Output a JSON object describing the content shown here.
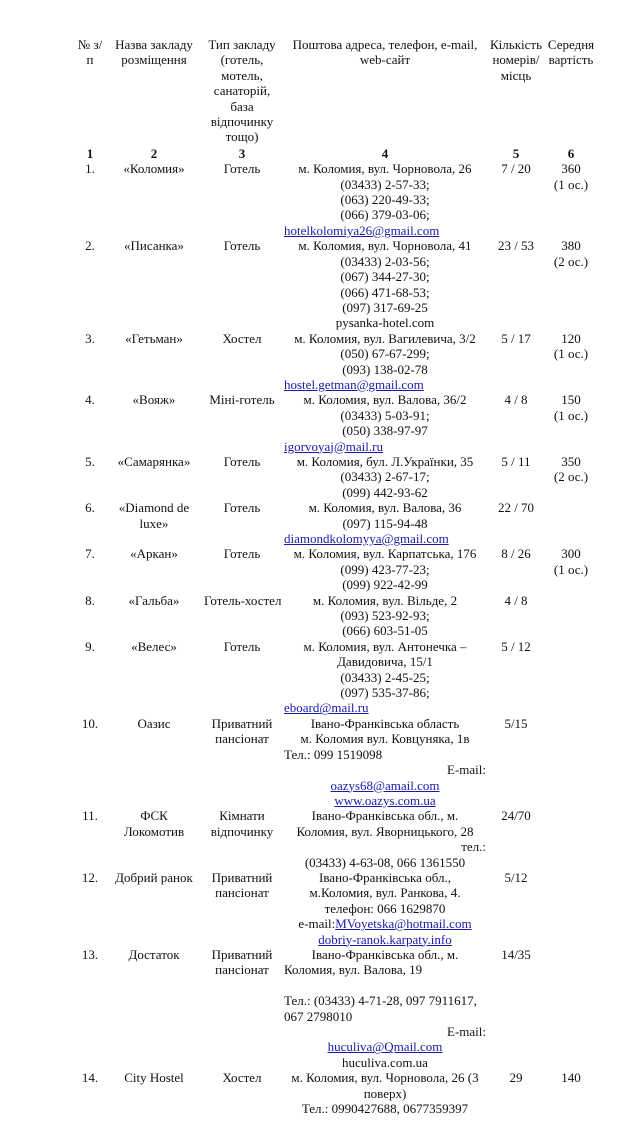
{
  "header": [
    [
      "№ з/ п"
    ],
    [
      "Назва закладу розміщення"
    ],
    [
      "Тип закладу (готель, мотель, санаторій, база відпочинку тощо)"
    ],
    [
      "Поштова адреса, телефон, e-mail, web-сайт"
    ],
    [
      "Кількість номерів/ місць"
    ],
    [
      "Середня вартість"
    ]
  ],
  "column_numbers": [
    "1",
    "2",
    "3",
    "4",
    "5",
    "6"
  ],
  "rows": [
    {
      "no": "1.",
      "name": [
        "«Коломия»"
      ],
      "type": [
        "Готель"
      ],
      "contacts": [
        {
          "t": "м. Коломия, вул. Чорновола, 26"
        },
        {
          "t": "(03433) 2-57-33;"
        },
        {
          "t": "(063) 220-49-33;"
        },
        {
          "t": "(066) 379-03-06;"
        },
        {
          "t": "hotelkolomiya26@gmail.com",
          "link": true,
          "align": "left"
        }
      ],
      "rooms": "7 / 20",
      "price": [
        "360",
        "(1 ос.)"
      ]
    },
    {
      "no": "2.",
      "name": [
        "«Писанка»"
      ],
      "type": [
        "Готель"
      ],
      "contacts": [
        {
          "t": "м. Коломия, вул. Чорновола, 41"
        },
        {
          "t": "(03433) 2-03-56;"
        },
        {
          "t": "(067) 344-27-30;"
        },
        {
          "t": "(066) 471-68-53;"
        },
        {
          "t": "(097) 317-69-25"
        },
        {
          "t": "pysanka-hotel.com"
        }
      ],
      "rooms": "23 / 53",
      "price": [
        "380",
        "(2 ос.)"
      ]
    },
    {
      "no": "3.",
      "name": [
        "«Гетьман»"
      ],
      "type": [
        "Хостел"
      ],
      "contacts": [
        {
          "t": "м. Коломия, вул. Вагилевича, 3/2"
        },
        {
          "t": "(050) 67-67-299;"
        },
        {
          "t": "(093) 138-02-78"
        },
        {
          "t": "hostel.getman@gmail.com",
          "link": true,
          "align": "left"
        }
      ],
      "rooms": "5 / 17",
      "price": [
        "120",
        "(1 ос.)"
      ]
    },
    {
      "no": "4.",
      "name": [
        "«Вояж»"
      ],
      "type": [
        "Міні-готель"
      ],
      "contacts": [
        {
          "t": "м. Коломия, вул. Валова, 36/2"
        },
        {
          "t": "(03433) 5-03-91;"
        },
        {
          "t": "(050) 338-97-97"
        },
        {
          "t": "igorvoyaj@mail.ru",
          "link": true,
          "align": "left"
        }
      ],
      "rooms": "4 / 8",
      "price": [
        "150",
        "(1 ос.)"
      ]
    },
    {
      "no": "5.",
      "name": [
        "«Самарянка»"
      ],
      "type": [
        "Готель"
      ],
      "contacts": [
        {
          "t": "м. Коломия, бул. Л.Українки, 35"
        },
        {
          "t": "(03433) 2-67-17;"
        },
        {
          "t": "(099) 442-93-62"
        }
      ],
      "rooms": "5 / 11",
      "price": [
        "350",
        "(2 ос.)"
      ]
    },
    {
      "no": "6.",
      "name": [
        "«Diamond de",
        "luxe»"
      ],
      "type": [
        "Готель"
      ],
      "contacts": [
        {
          "t": "м. Коломия, вул. Валова, 36"
        },
        {
          "t": "(097) 115-94-48"
        },
        {
          "t": "diamondkolomyya@gmail.com",
          "link": true,
          "align": "left"
        }
      ],
      "rooms": "22 / 70",
      "price": []
    },
    {
      "no": "7.",
      "name": [
        "«Аркан»"
      ],
      "type": [
        "Готель"
      ],
      "contacts": [
        {
          "t": "м. Коломия, вул. Карпатська, 176"
        },
        {
          "t": "(099) 423-77-23;"
        },
        {
          "t": "(099) 922-42-99"
        }
      ],
      "rooms": "8 / 26",
      "price": [
        "300",
        "(1 ос.)"
      ]
    },
    {
      "no": "8.",
      "name": [
        "«Гальба»"
      ],
      "type": [
        "Готель-хостел"
      ],
      "contacts": [
        {
          "t": "м. Коломия, вул. Вільде, 2"
        },
        {
          "t": "(093) 523-92-93;"
        },
        {
          "t": "(066) 603-51-05"
        }
      ],
      "rooms": "4 / 8",
      "price": []
    },
    {
      "no": "9.",
      "name": [
        "«Велес»"
      ],
      "type": [
        "Готель"
      ],
      "contacts": [
        {
          "t": "м. Коломия, вул. Антонечка –"
        },
        {
          "t": "Давидовича, 15/1"
        },
        {
          "t": "(03433) 2-45-25;"
        },
        {
          "t": "(097) 535-37-86;"
        },
        {
          "t": "eboard@mail.ru",
          "link": true,
          "align": "left"
        }
      ],
      "rooms": "5 / 12",
      "price": []
    },
    {
      "no": "10.",
      "name": [
        "Оазис"
      ],
      "type": [
        "Приватний",
        "пансіонат"
      ],
      "contacts": [
        {
          "t": "Івано-Франківська область"
        },
        {
          "t": "м. Коломия вул. Ковцуняка, 1в"
        },
        {
          "t": "Тел.: 099 1519098",
          "align": "left"
        },
        {
          "t": "E-mail:",
          "align": "right"
        },
        {
          "t": "oazys68@amail.com",
          "link": true
        },
        {
          "t": "www.oazys.com.ua",
          "link": true
        }
      ],
      "rooms": "5/15",
      "price": []
    },
    {
      "no": "11.",
      "name": [
        "ФСК",
        "Локомотив"
      ],
      "type": [
        "Кімнати",
        "відпочинку"
      ],
      "contacts": [
        {
          "t": "Івано-Франківська обл., м."
        },
        {
          "t": "Коломия, вул. Яворницького, 28"
        },
        {
          "t": "тел.:",
          "align": "right"
        },
        {
          "t": "(03433) 4-63-08, 066 1361550"
        }
      ],
      "rooms": "24/70",
      "price": []
    },
    {
      "no": "12.",
      "name": [
        "Добрий ранок"
      ],
      "type": [
        "Приватний",
        "пансіонат"
      ],
      "contacts": [
        {
          "t": "Івано-Франківська обл.,"
        },
        {
          "t": "м.Коломия, вул. Ранкова, 4."
        },
        {
          "t": "телефон: 066 1629870"
        },
        {
          "t": "e-mail:",
          "t2": "MVoyetska@hotmail.com"
        },
        {
          "t": "dobriy-ranok.karpaty.info",
          "link": true
        }
      ],
      "rooms": "5/12",
      "price": []
    },
    {
      "no": "13.",
      "name": [
        "Достаток"
      ],
      "type": [
        "Приватний",
        "пансіонат"
      ],
      "contacts": [
        {
          "t": "Івано-Франківська обл., м."
        },
        {
          "t": "Коломия, вул. Валова, 19",
          "align": "left"
        },
        {
          "t": "",
          "blank": true
        },
        {
          "t": "Тел.:  (03433) 4-71-28, 097 7911617,",
          "align": "left"
        },
        {
          "t": "067 2798010",
          "align": "left"
        },
        {
          "t": "E-mail:",
          "align": "right"
        },
        {
          "t": "huculiva@Qmail.com",
          "link": true
        },
        {
          "t": "huculiva.com.ua"
        }
      ],
      "rooms": "14/35",
      "price": []
    },
    {
      "no": "14.",
      "name": [
        "City Hostel"
      ],
      "type": [
        "Хостел"
      ],
      "contacts": [
        {
          "t": "м. Коломия, вул. Чорновола, 26 (3"
        },
        {
          "t": "поверх)"
        },
        {
          "t": "Тел.:  0990427688, 0677359397"
        }
      ],
      "rooms": "29",
      "price": [
        "140"
      ]
    }
  ],
  "colors": {
    "link": "#1a1aa8",
    "text": "#111111"
  }
}
